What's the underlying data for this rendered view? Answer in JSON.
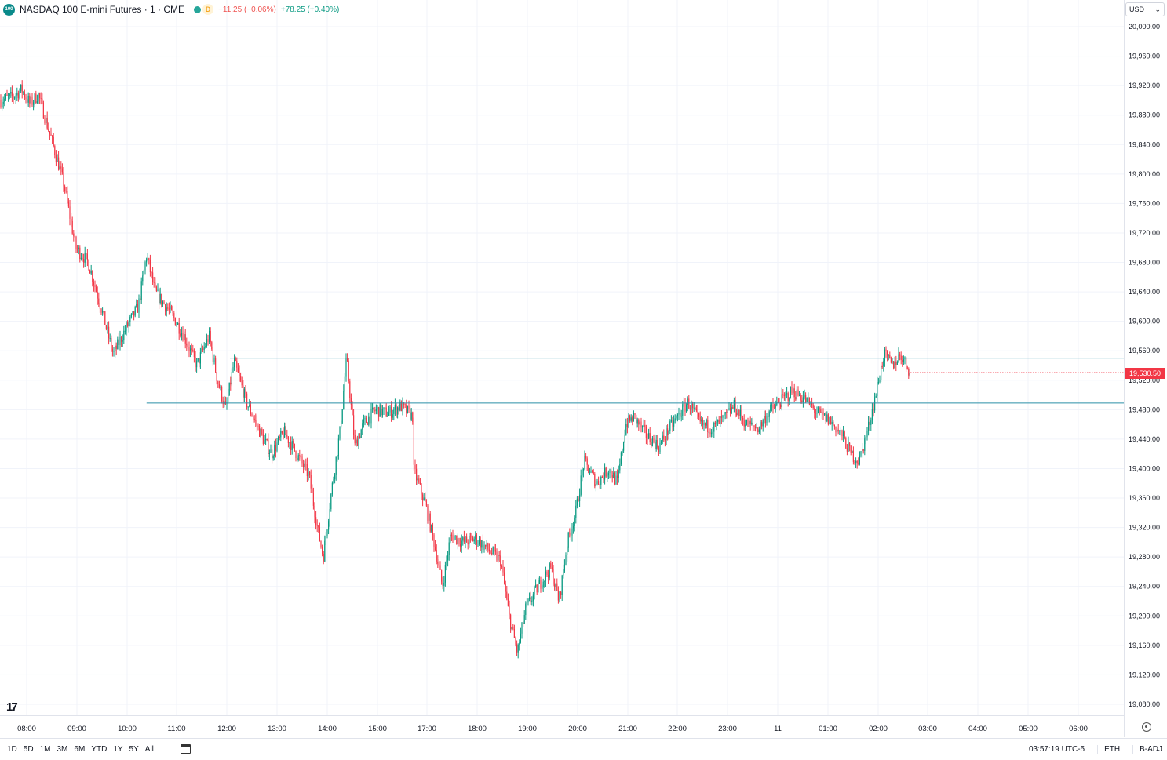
{
  "header": {
    "symbol_badge": "100",
    "title": "NASDAQ 100 E-mini Futures · 1 · CME",
    "d_badge": "D",
    "change_neg": "−11.25 (−0.06%)",
    "change_pos": "+78.25 (+0.40%)"
  },
  "currency": {
    "label": "USD",
    "chevron": "⌄"
  },
  "last_price": "19,530.50",
  "logo_text": "17",
  "colors": {
    "up": "#089981",
    "down": "#f23645",
    "level_line": "#2a8fa8",
    "grid": "#f0f3fa"
  },
  "chart_data": {
    "type": "candlestick",
    "ylim": [
      19040,
      20020
    ],
    "y_ticks": [
      20000,
      19960,
      19920,
      19880,
      19840,
      19800,
      19760,
      19720,
      19680,
      19640,
      19600,
      19560,
      19520,
      19480,
      19440,
      19400,
      19360,
      19320,
      19280,
      19240,
      19200,
      19160,
      19120,
      19080
    ],
    "y_tick_labels": [
      "20,000.00",
      "19,960.00",
      "19,920.00",
      "19,880.00",
      "19,840.00",
      "19,800.00",
      "19,760.00",
      "19,720.00",
      "19,680.00",
      "19,640.00",
      "19,600.00",
      "19,560.00",
      "19,520.00",
      "19,480.00",
      "19,440.00",
      "19,400.00",
      "19,360.00",
      "19,320.00",
      "19,280.00",
      "19,240.00",
      "19,200.00",
      "19,160.00",
      "19,120.00",
      "19,080.00"
    ],
    "x_tick_labels": [
      "08:00",
      "09:00",
      "10:00",
      "11:00",
      "12:00",
      "13:00",
      "14:00",
      "15:00",
      "17:00",
      "18:00",
      "19:00",
      "20:00",
      "21:00",
      "22:00",
      "23:00",
      "11",
      "01:00",
      "02:00",
      "03:00",
      "04:00",
      "05:00",
      "06:00"
    ],
    "horizontal_levels": [
      {
        "value": 19550,
        "start_time": "12:20"
      },
      {
        "value": 19489,
        "start_time": "10:40"
      }
    ],
    "last_price": 19530.5,
    "price_path": [
      [
        "07:45",
        19900
      ],
      [
        "08:00",
        19905
      ],
      [
        "08:10",
        19915
      ],
      [
        "08:20",
        19895
      ],
      [
        "08:30",
        19908
      ],
      [
        "08:45",
        19850
      ],
      [
        "09:00",
        19790
      ],
      [
        "09:15",
        19700
      ],
      [
        "09:30",
        19680
      ],
      [
        "09:45",
        19620
      ],
      [
        "10:00",
        19555
      ],
      [
        "10:15",
        19590
      ],
      [
        "10:30",
        19620
      ],
      [
        "10:40",
        19690
      ],
      [
        "10:50",
        19640
      ],
      [
        "11:10",
        19610
      ],
      [
        "11:25",
        19580
      ],
      [
        "11:40",
        19540
      ],
      [
        "11:55",
        19580
      ],
      [
        "12:05",
        19520
      ],
      [
        "12:15",
        19480
      ],
      [
        "12:25",
        19545
      ],
      [
        "12:40",
        19490
      ],
      [
        "13:00",
        19440
      ],
      [
        "13:10",
        19420
      ],
      [
        "13:25",
        19450
      ],
      [
        "13:40",
        19420
      ],
      [
        "13:55",
        19390
      ],
      [
        "14:05",
        19320
      ],
      [
        "14:12",
        19280
      ],
      [
        "14:22",
        19370
      ],
      [
        "14:32",
        19450
      ],
      [
        "14:40",
        19550
      ],
      [
        "14:50",
        19430
      ],
      [
        "15:00",
        19460
      ],
      [
        "15:15",
        19480
      ],
      [
        "15:30",
        19475
      ],
      [
        "15:45",
        19485
      ],
      [
        "16:00",
        19470
      ],
      [
        "16:10",
        19430
      ],
      [
        "16:20",
        19390
      ],
      [
        "16:35",
        19430
      ],
      [
        "16:50",
        19440
      ],
      [
        "17:00",
        19400
      ],
      [
        "17:15",
        19350
      ],
      [
        "17:25",
        19300
      ],
      [
        "17:35",
        19240
      ],
      [
        "17:45",
        19310
      ],
      [
        "18:00",
        19300
      ],
      [
        "18:15",
        19305
      ],
      [
        "18:30",
        19290
      ],
      [
        "18:45",
        19275
      ],
      [
        "18:55",
        19200
      ],
      [
        "19:05",
        19150
      ],
      [
        "19:15",
        19210
      ],
      [
        "19:30",
        19240
      ],
      [
        "19:45",
        19265
      ],
      [
        "19:55",
        19220
      ],
      [
        "20:05",
        19300
      ],
      [
        "20:15",
        19340
      ],
      [
        "20:25",
        19410
      ],
      [
        "20:40",
        19380
      ],
      [
        "20:55",
        19400
      ],
      [
        "21:05",
        19380
      ],
      [
        "21:15",
        19460
      ],
      [
        "21:25",
        19470
      ],
      [
        "21:40",
        19445
      ],
      [
        "21:55",
        19430
      ],
      [
        "22:05",
        19450
      ],
      [
        "22:20",
        19475
      ],
      [
        "22:30",
        19490
      ],
      [
        "22:45",
        19460
      ],
      [
        "23:00",
        19455
      ],
      [
        "23:15",
        19470
      ],
      [
        "23:25",
        19485
      ],
      [
        "23:40",
        19460
      ],
      [
        "23:55",
        19455
      ],
      [
        "00:05",
        19475
      ],
      [
        "00:20",
        19490
      ],
      [
        "00:35",
        19505
      ],
      [
        "00:50",
        19495
      ],
      [
        "01:05",
        19475
      ],
      [
        "01:20",
        19465
      ],
      [
        "01:35",
        19445
      ],
      [
        "01:45",
        19420
      ],
      [
        "01:55",
        19410
      ],
      [
        "02:05",
        19450
      ],
      [
        "02:15",
        19500
      ],
      [
        "02:25",
        19555
      ],
      [
        "02:35",
        19540
      ],
      [
        "02:45",
        19555
      ],
      [
        "02:57",
        19530.5
      ]
    ]
  },
  "bottom_bar": {
    "ranges": [
      "1D",
      "5D",
      "1M",
      "3M",
      "6M",
      "YTD",
      "1Y",
      "5Y",
      "All"
    ],
    "time": "03:57:19 UTC-5",
    "session": "ETH",
    "adj": "B-ADJ"
  }
}
